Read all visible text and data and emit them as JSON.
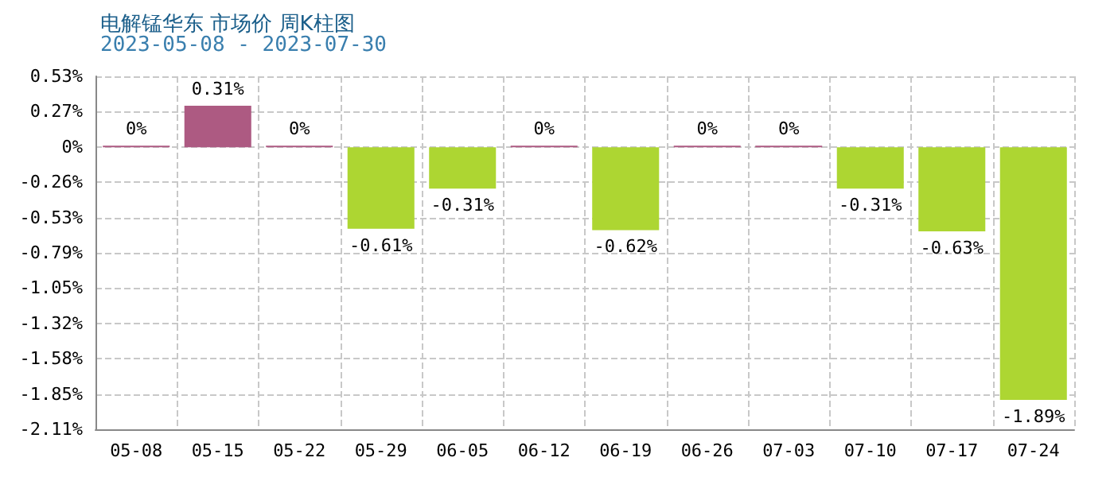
{
  "chart_data": {
    "type": "bar",
    "title": "电解锰华东 市场价 周K柱图",
    "subtitle": "2023-05-08 - 2023-07-30",
    "categories": [
      "05-08",
      "05-15",
      "05-22",
      "05-29",
      "06-05",
      "06-12",
      "06-19",
      "06-26",
      "07-03",
      "07-10",
      "07-17",
      "07-24"
    ],
    "values": [
      0,
      0.31,
      0,
      -0.61,
      -0.31,
      0,
      -0.62,
      0,
      0,
      -0.31,
      -0.63,
      -1.89
    ],
    "colors": [
      "#ad5a82",
      "#ad5a82",
      "#ad5a82",
      "#add632",
      "#add632",
      "#ad5a82",
      "#add632",
      "#ad5a82",
      "#ad5a82",
      "#add632",
      "#add632",
      "#add632"
    ],
    "value_labels": [
      "0%",
      "0.31%",
      "0%",
      "-0.61%",
      "-0.31%",
      "0%",
      "-0.62%",
      "0%",
      "0%",
      "-0.31%",
      "-0.63%",
      "-1.89%"
    ],
    "ylim": [
      -2.11,
      0.53
    ],
    "yticks": [
      {
        "value": 0.53,
        "label": "0.53%"
      },
      {
        "value": 0.27,
        "label": "0.27%"
      },
      {
        "value": 0,
        "label": "0%"
      },
      {
        "value": -0.26,
        "label": "-0.26%"
      },
      {
        "value": -0.53,
        "label": "-0.53%"
      },
      {
        "value": -0.79,
        "label": "-0.79%"
      },
      {
        "value": -1.05,
        "label": "-1.05%"
      },
      {
        "value": -1.32,
        "label": "-1.32%"
      },
      {
        "value": -1.58,
        "label": "-1.58%"
      },
      {
        "value": -1.85,
        "label": "-1.85%"
      },
      {
        "value": -2.11,
        "label": "-2.11%"
      }
    ],
    "grid": true
  }
}
